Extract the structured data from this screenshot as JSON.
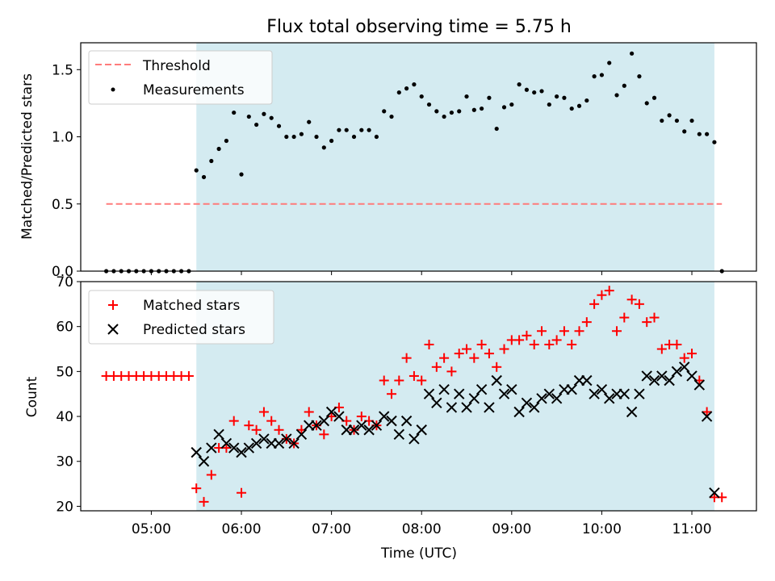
{
  "title": "Flux total observing time = 5.75 h",
  "colors": {
    "shade": "#d4ebf1",
    "threshold": "#ff7b7b",
    "measurement": "#000000",
    "matched": "#ff0000",
    "predicted": "#000000"
  },
  "chart_data": [
    {
      "type": "scatter",
      "ylabel": "Matched/Predicted stars",
      "ylim": [
        0,
        1.7
      ],
      "yticks": [
        0.0,
        0.5,
        1.0,
        1.5
      ],
      "ytick_labels": [
        "0.0",
        "0.5",
        "1.0",
        "1.5"
      ],
      "legend_position": "upper-left",
      "grid": false,
      "observing_window": [
        "05:30",
        "11:15"
      ],
      "threshold": {
        "name": "Threshold",
        "value": 0.5,
        "x_range": [
          "04:30",
          "11:20"
        ]
      },
      "series": [
        {
          "name": "Measurements",
          "points": [
            [
              "04:30",
              0
            ],
            [
              "04:35",
              0
            ],
            [
              "04:40",
              0
            ],
            [
              "04:45",
              0
            ],
            [
              "04:50",
              0
            ],
            [
              "04:55",
              0
            ],
            [
              "05:00",
              0
            ],
            [
              "05:05",
              0
            ],
            [
              "05:10",
              0
            ],
            [
              "05:15",
              0
            ],
            [
              "05:20",
              0
            ],
            [
              "05:25",
              0
            ],
            [
              "05:30",
              0.75
            ],
            [
              "05:35",
              0.7
            ],
            [
              "05:40",
              0.82
            ],
            [
              "05:45",
              0.91
            ],
            [
              "05:50",
              0.97
            ],
            [
              "05:55",
              1.18
            ],
            [
              "06:00",
              0.72
            ],
            [
              "06:05",
              1.15
            ],
            [
              "06:10",
              1.09
            ],
            [
              "06:15",
              1.17
            ],
            [
              "06:20",
              1.14
            ],
            [
              "06:25",
              1.08
            ],
            [
              "06:30",
              1.0
            ],
            [
              "06:35",
              1.0
            ],
            [
              "06:40",
              1.02
            ],
            [
              "06:45",
              1.11
            ],
            [
              "06:50",
              1.0
            ],
            [
              "06:55",
              0.92
            ],
            [
              "07:00",
              0.97
            ],
            [
              "07:05",
              1.05
            ],
            [
              "07:10",
              1.05
            ],
            [
              "07:15",
              1.0
            ],
            [
              "07:20",
              1.05
            ],
            [
              "07:25",
              1.05
            ],
            [
              "07:30",
              1.0
            ],
            [
              "07:35",
              1.19
            ],
            [
              "07:40",
              1.15
            ],
            [
              "07:45",
              1.33
            ],
            [
              "07:50",
              1.36
            ],
            [
              "07:55",
              1.39
            ],
            [
              "08:00",
              1.3
            ],
            [
              "08:05",
              1.24
            ],
            [
              "08:10",
              1.19
            ],
            [
              "08:15",
              1.15
            ],
            [
              "08:20",
              1.18
            ],
            [
              "08:25",
              1.19
            ],
            [
              "08:30",
              1.3
            ],
            [
              "08:35",
              1.2
            ],
            [
              "08:40",
              1.21
            ],
            [
              "08:45",
              1.29
            ],
            [
              "08:50",
              1.06
            ],
            [
              "08:55",
              1.22
            ],
            [
              "09:00",
              1.24
            ],
            [
              "09:05",
              1.39
            ],
            [
              "09:10",
              1.35
            ],
            [
              "09:15",
              1.33
            ],
            [
              "09:20",
              1.34
            ],
            [
              "09:25",
              1.24
            ],
            [
              "09:30",
              1.3
            ],
            [
              "09:35",
              1.29
            ],
            [
              "09:40",
              1.21
            ],
            [
              "09:45",
              1.23
            ],
            [
              "09:50",
              1.27
            ],
            [
              "09:55",
              1.45
            ],
            [
              "10:00",
              1.46
            ],
            [
              "10:05",
              1.55
            ],
            [
              "10:10",
              1.31
            ],
            [
              "10:15",
              1.38
            ],
            [
              "10:20",
              1.62
            ],
            [
              "10:25",
              1.45
            ],
            [
              "10:30",
              1.25
            ],
            [
              "10:35",
              1.29
            ],
            [
              "10:40",
              1.12
            ],
            [
              "10:45",
              1.16
            ],
            [
              "10:50",
              1.12
            ],
            [
              "10:55",
              1.04
            ],
            [
              "11:00",
              1.12
            ],
            [
              "11:05",
              1.02
            ],
            [
              "11:10",
              1.02
            ],
            [
              "11:15",
              0.96
            ],
            [
              "11:20",
              0
            ]
          ]
        }
      ]
    },
    {
      "type": "scatter",
      "xlabel": "Time (UTC)",
      "ylabel": "Count",
      "ylim": [
        19,
        70
      ],
      "yticks": [
        20,
        30,
        40,
        50,
        60,
        70
      ],
      "ytick_labels": [
        "20",
        "30",
        "40",
        "50",
        "60",
        "70"
      ],
      "xticks": [
        "05:00",
        "06:00",
        "07:00",
        "08:00",
        "09:00",
        "10:00",
        "11:00"
      ],
      "xtick_labels": [
        "05:00",
        "06:00",
        "07:00",
        "08:00",
        "09:00",
        "10:00",
        "11:00"
      ],
      "xlim": [
        "04:13",
        "11:43"
      ],
      "legend_position": "upper-left",
      "grid": false,
      "observing_window": [
        "05:30",
        "11:15"
      ],
      "series": [
        {
          "name": "Matched stars",
          "marker": "plus",
          "points": [
            [
              "04:30",
              49
            ],
            [
              "04:35",
              49
            ],
            [
              "04:40",
              49
            ],
            [
              "04:45",
              49
            ],
            [
              "04:50",
              49
            ],
            [
              "04:55",
              49
            ],
            [
              "05:00",
              49
            ],
            [
              "05:05",
              49
            ],
            [
              "05:10",
              49
            ],
            [
              "05:15",
              49
            ],
            [
              "05:20",
              49
            ],
            [
              "05:25",
              49
            ],
            [
              "05:30",
              24
            ],
            [
              "05:35",
              21
            ],
            [
              "05:40",
              27
            ],
            [
              "05:45",
              33
            ],
            [
              "05:50",
              33
            ],
            [
              "05:55",
              39
            ],
            [
              "06:00",
              23
            ],
            [
              "06:05",
              38
            ],
            [
              "06:10",
              37
            ],
            [
              "06:15",
              41
            ],
            [
              "06:20",
              39
            ],
            [
              "06:25",
              37
            ],
            [
              "06:30",
              35
            ],
            [
              "06:35",
              34
            ],
            [
              "06:40",
              37
            ],
            [
              "06:45",
              41
            ],
            [
              "06:50",
              38
            ],
            [
              "06:55",
              36
            ],
            [
              "07:00",
              40
            ],
            [
              "07:05",
              42
            ],
            [
              "07:10",
              39
            ],
            [
              "07:15",
              37
            ],
            [
              "07:20",
              40
            ],
            [
              "07:25",
              39
            ],
            [
              "07:30",
              38
            ],
            [
              "07:35",
              48
            ],
            [
              "07:40",
              45
            ],
            [
              "07:45",
              48
            ],
            [
              "07:50",
              53
            ],
            [
              "07:55",
              49
            ],
            [
              "08:00",
              48
            ],
            [
              "08:05",
              56
            ],
            [
              "08:10",
              51
            ],
            [
              "08:15",
              53
            ],
            [
              "08:20",
              50
            ],
            [
              "08:25",
              54
            ],
            [
              "08:30",
              55
            ],
            [
              "08:35",
              53
            ],
            [
              "08:40",
              56
            ],
            [
              "08:45",
              54
            ],
            [
              "08:50",
              51
            ],
            [
              "08:55",
              55
            ],
            [
              "09:00",
              57
            ],
            [
              "09:05",
              57
            ],
            [
              "09:10",
              58
            ],
            [
              "09:15",
              56
            ],
            [
              "09:20",
              59
            ],
            [
              "09:25",
              56
            ],
            [
              "09:30",
              57
            ],
            [
              "09:35",
              59
            ],
            [
              "09:40",
              56
            ],
            [
              "09:45",
              59
            ],
            [
              "09:50",
              61
            ],
            [
              "09:55",
              65
            ],
            [
              "10:00",
              67
            ],
            [
              "10:05",
              68
            ],
            [
              "10:10",
              59
            ],
            [
              "10:15",
              62
            ],
            [
              "10:20",
              66
            ],
            [
              "10:25",
              65
            ],
            [
              "10:30",
              61
            ],
            [
              "10:35",
              62
            ],
            [
              "10:40",
              55
            ],
            [
              "10:45",
              56
            ],
            [
              "10:50",
              56
            ],
            [
              "10:55",
              53
            ],
            [
              "11:00",
              54
            ],
            [
              "11:05",
              48
            ],
            [
              "11:10",
              41
            ],
            [
              "11:15",
              22
            ],
            [
              "11:20",
              22
            ]
          ]
        },
        {
          "name": "Predicted stars",
          "marker": "x",
          "points": [
            [
              "05:30",
              32
            ],
            [
              "05:35",
              30
            ],
            [
              "05:40",
              33
            ],
            [
              "05:45",
              36
            ],
            [
              "05:50",
              34
            ],
            [
              "05:55",
              33
            ],
            [
              "06:00",
              32
            ],
            [
              "06:05",
              33
            ],
            [
              "06:10",
              34
            ],
            [
              "06:15",
              35
            ],
            [
              "06:20",
              34
            ],
            [
              "06:25",
              34
            ],
            [
              "06:30",
              35
            ],
            [
              "06:35",
              34
            ],
            [
              "06:40",
              36
            ],
            [
              "06:45",
              38
            ],
            [
              "06:50",
              38
            ],
            [
              "06:55",
              39
            ],
            [
              "07:00",
              41
            ],
            [
              "07:05",
              40
            ],
            [
              "07:10",
              37
            ],
            [
              "07:15",
              37
            ],
            [
              "07:20",
              38
            ],
            [
              "07:25",
              37
            ],
            [
              "07:30",
              38
            ],
            [
              "07:35",
              40
            ],
            [
              "07:40",
              39
            ],
            [
              "07:45",
              36
            ],
            [
              "07:50",
              39
            ],
            [
              "07:55",
              35
            ],
            [
              "08:00",
              37
            ],
            [
              "08:05",
              45
            ],
            [
              "08:10",
              43
            ],
            [
              "08:15",
              46
            ],
            [
              "08:20",
              42
            ],
            [
              "08:25",
              45
            ],
            [
              "08:30",
              42
            ],
            [
              "08:35",
              44
            ],
            [
              "08:40",
              46
            ],
            [
              "08:45",
              42
            ],
            [
              "08:50",
              48
            ],
            [
              "08:55",
              45
            ],
            [
              "09:00",
              46
            ],
            [
              "09:05",
              41
            ],
            [
              "09:10",
              43
            ],
            [
              "09:15",
              42
            ],
            [
              "09:20",
              44
            ],
            [
              "09:25",
              45
            ],
            [
              "09:30",
              44
            ],
            [
              "09:35",
              46
            ],
            [
              "09:40",
              46
            ],
            [
              "09:45",
              48
            ],
            [
              "09:50",
              48
            ],
            [
              "09:55",
              45
            ],
            [
              "10:00",
              46
            ],
            [
              "10:05",
              44
            ],
            [
              "10:10",
              45
            ],
            [
              "10:15",
              45
            ],
            [
              "10:20",
              41
            ],
            [
              "10:25",
              45
            ],
            [
              "10:30",
              49
            ],
            [
              "10:35",
              48
            ],
            [
              "10:40",
              49
            ],
            [
              "10:45",
              48
            ],
            [
              "10:50",
              50
            ],
            [
              "10:55",
              51
            ],
            [
              "11:00",
              49
            ],
            [
              "11:05",
              47
            ],
            [
              "11:10",
              40
            ],
            [
              "11:15",
              23
            ]
          ]
        }
      ]
    }
  ]
}
